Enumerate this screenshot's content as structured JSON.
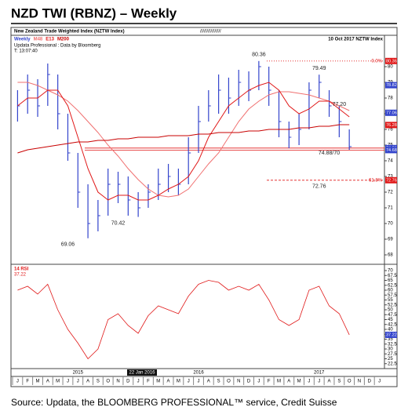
{
  "chart_data": [
    {
      "type": "ohlc",
      "title": "NZD TWI (RBNZ) – Weekly",
      "subtitle": "New Zealand Trade Weighted Index (NZTW Index)",
      "header_mid": "////////////////",
      "date_label": "10 Oct 2017  NZTW Index",
      "data_note": "Updata Professional : Data by Bloomberg",
      "time": "T: 13:07:40",
      "cursor_label": "22 Jan 2016",
      "source": "Source: Updata, the BLOOMBERG PROFESSIONAL™ service, Credit Suisse",
      "categories": [
        "J",
        "F",
        "M",
        "A",
        "M",
        "J",
        "J",
        "A",
        "S",
        "O",
        "N",
        "D",
        "J",
        "F",
        "M",
        "A",
        "M",
        "J",
        "J",
        "A",
        "S",
        "O",
        "N",
        "D",
        "J",
        "F",
        "M",
        "A",
        "M",
        "J",
        "J",
        "A",
        "S",
        "O",
        "N",
        "D",
        "J"
      ],
      "year_ticks": [
        {
          "value": 6,
          "label": "2015"
        },
        {
          "value": 18,
          "label": "2016"
        },
        {
          "value": 30,
          "label": "2017"
        }
      ],
      "series": [
        {
          "name": "Weekly",
          "color": "#3344cc",
          "high": [
            78.5,
            79.5,
            79.2,
            80.2,
            79.5,
            77,
            74.5,
            72.5,
            71.5,
            73.5,
            73.3,
            73,
            72,
            72.5,
            73.5,
            73.8,
            73.5,
            75.5,
            77.5,
            78.5,
            79.5,
            79.3,
            79.8,
            79.7,
            80.36,
            80,
            78.5,
            76.5,
            77,
            79,
            79.49,
            78.5,
            77.5,
            76,
            null,
            null,
            null
          ],
          "low": [
            76.5,
            77,
            76.8,
            77.5,
            76,
            74,
            71,
            69.06,
            69.5,
            70.5,
            71.3,
            70.5,
            70.42,
            71,
            71.5,
            72,
            71.8,
            72.5,
            74.5,
            76.5,
            77,
            77,
            77.5,
            77.8,
            78.5,
            77.5,
            75.5,
            74.8,
            75,
            76,
            78,
            76.8,
            75.5,
            74.7,
            null,
            null,
            null
          ],
          "values": [
            77.5,
            78.5,
            77.5,
            79.5,
            77,
            74.5,
            72,
            70,
            70.5,
            72.5,
            72.5,
            71.5,
            71,
            72,
            72.5,
            73,
            72.5,
            74.5,
            76.5,
            77.5,
            78.5,
            78,
            79,
            78.5,
            80,
            78.5,
            76.5,
            75.5,
            76,
            78.5,
            79,
            77.5,
            76.5,
            74.9,
            null,
            null,
            null
          ]
        },
        {
          "name": "M48",
          "color": "#f07070",
          "values": [
            79,
            79,
            78.8,
            78.5,
            78.2,
            77.8,
            77.2,
            76.5,
            75.8,
            75,
            74.3,
            73.5,
            72.8,
            72.2,
            71.8,
            71.7,
            71.8,
            72.2,
            73,
            73.8,
            74.5,
            75.5,
            76.5,
            77.3,
            77.8,
            78.2,
            78.4,
            78.4,
            78.3,
            78.2,
            78,
            77.8,
            77.5,
            77.2,
            null,
            null,
            null
          ]
        },
        {
          "name": "E13",
          "color": "#e01818",
          "values": [
            77.5,
            78,
            78,
            78.5,
            78.5,
            77.5,
            75.5,
            73.5,
            72,
            71.5,
            71.8,
            71.8,
            71.5,
            71.5,
            71.8,
            72.2,
            72.5,
            73,
            74,
            75.5,
            76.5,
            77.5,
            78,
            78.5,
            78.8,
            79,
            78.5,
            77.5,
            77,
            77.3,
            77.8,
            77.8,
            77.3,
            76.8,
            null,
            null,
            null
          ]
        },
        {
          "name": "M200",
          "color": "#c80000",
          "values": [
            74.5,
            74.7,
            74.8,
            74.9,
            75,
            75.1,
            75.2,
            75.2,
            75.3,
            75.3,
            75.4,
            75.4,
            75.5,
            75.5,
            75.5,
            75.6,
            75.6,
            75.6,
            75.7,
            75.7,
            75.8,
            75.8,
            75.8,
            75.9,
            75.9,
            76,
            76,
            76,
            76.1,
            76.1,
            76.2,
            76.2,
            76.3,
            76.3,
            null,
            null,
            null
          ]
        }
      ],
      "levels": [
        {
          "value": 80.36,
          "label": "0.0%",
          "color": "#e01818",
          "style": "dotted"
        },
        {
          "value": 72.76,
          "label": "61.8%",
          "color": "#e01818",
          "style": "dashed"
        },
        {
          "value": 74.81,
          "color": "#e01818",
          "style": "solid"
        },
        {
          "value": 74.68,
          "color": "#e01818",
          "style": "solid"
        }
      ],
      "right_labels": [
        {
          "value": 80.36,
          "color": "#e01818"
        },
        {
          "value": 78.82,
          "color": "#3344cc"
        },
        {
          "value": 77.06,
          "color": "#3344cc"
        },
        {
          "value": 76.28,
          "color": "#e01818"
        },
        {
          "value": 74.81,
          "color": "#3344cc"
        },
        {
          "value": 74.68,
          "color": "#3344cc"
        },
        {
          "value": 72.76,
          "color": "#e01818"
        }
      ],
      "annotations": [
        {
          "label": "80.36",
          "value": 80.36,
          "at": 24
        },
        {
          "label": "79.49",
          "value": 79.49,
          "at": 30
        },
        {
          "label": "77.20",
          "value": 77.2,
          "at": 32
        },
        {
          "label": "74.88/70",
          "value": 74.88,
          "at": 31
        },
        {
          "label": "72.76",
          "value": 72.76,
          "at": 30
        },
        {
          "label": "70.42",
          "value": 70.42,
          "at": 10
        },
        {
          "label": "69.06",
          "value": 69.06,
          "at": 5
        }
      ],
      "ylim": [
        67.5,
        81.5
      ],
      "yticks": [
        68,
        69,
        70,
        71,
        72,
        73,
        74,
        75,
        76,
        77,
        78,
        79,
        80
      ]
    },
    {
      "type": "line",
      "title": "14 RSI",
      "color": "#e01818",
      "values": [
        60,
        62,
        58,
        63,
        50,
        40,
        33,
        25,
        30,
        45,
        48,
        42,
        38,
        47,
        52,
        50,
        48,
        57,
        63,
        65,
        64,
        60,
        62,
        60,
        63,
        55,
        45,
        42,
        45,
        60,
        62,
        52,
        48,
        37.22,
        null,
        null,
        null
      ],
      "ylim": [
        20,
        72
      ],
      "yticks": [
        70,
        67.5,
        65,
        62.5,
        60,
        57.5,
        55,
        52.5,
        50,
        47.5,
        45,
        42.5,
        40,
        37.5,
        35,
        32.5,
        30,
        27.5,
        25,
        22.5
      ]
    }
  ]
}
